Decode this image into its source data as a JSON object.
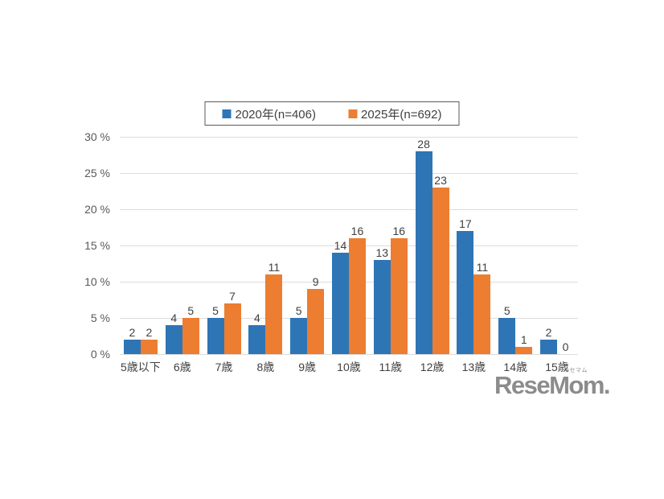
{
  "chart_data": {
    "type": "bar",
    "title": "",
    "categories": [
      "5歳以下",
      "6歳",
      "7歳",
      "8歳",
      "9歳",
      "10歳",
      "11歳",
      "12歳",
      "13歳",
      "14歳",
      "15歳"
    ],
    "series": [
      {
        "key": "2020",
        "name": "2020年(n=406)",
        "color": "#2E75B6",
        "values": [
          2,
          4,
          5,
          4,
          5,
          14,
          13,
          28,
          17,
          5,
          2
        ]
      },
      {
        "key": "2025",
        "name": "2025年(n=692)",
        "color": "#ED7D31",
        "values": [
          2,
          5,
          7,
          11,
          9,
          16,
          16,
          23,
          11,
          1,
          0
        ]
      }
    ],
    "ylim": [
      0,
      30
    ],
    "yticks": [
      0,
      5,
      10,
      15,
      20,
      25,
      30
    ],
    "ytick_labels": [
      "0 %",
      "5 %",
      "10 %",
      "15 %",
      "20 %",
      "25 %",
      "30 %"
    ],
    "grid": true,
    "legend_position": "top-center",
    "data_labels": true
  },
  "watermark": {
    "text": "ReseMom.",
    "ruby": "リセマム"
  }
}
